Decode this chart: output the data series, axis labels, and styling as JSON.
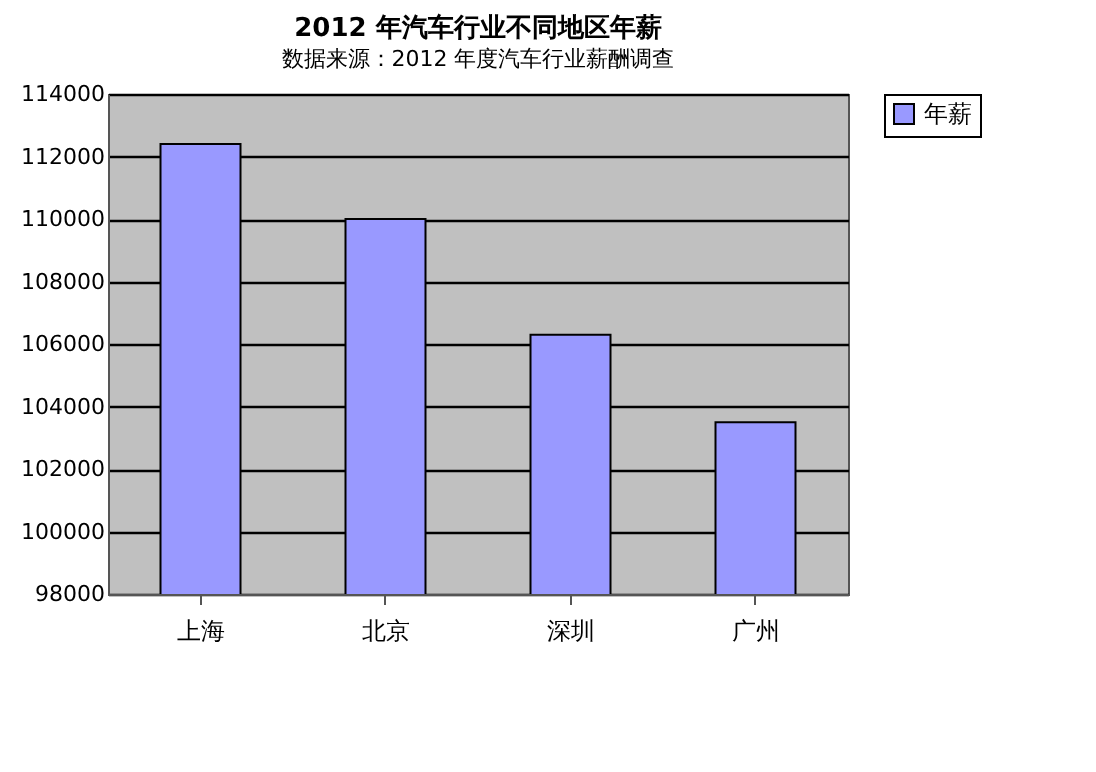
{
  "chart_data": {
    "type": "bar",
    "title": "2012 年汽车行业不同地区年薪",
    "subtitle": "数据来源：2012 年度汽车行业薪酬调查",
    "categories": [
      "上海",
      "北京",
      "深圳",
      "广州"
    ],
    "series": [
      {
        "name": "年薪",
        "color": "#9999ff",
        "values": [
          112400,
          110000,
          106300,
          103500
        ]
      }
    ],
    "ylim": [
      98000,
      114000
    ],
    "yticks": [
      98000,
      100000,
      102000,
      104000,
      106000,
      108000,
      110000,
      112000,
      114000
    ],
    "grid": "y",
    "legend": "right"
  }
}
